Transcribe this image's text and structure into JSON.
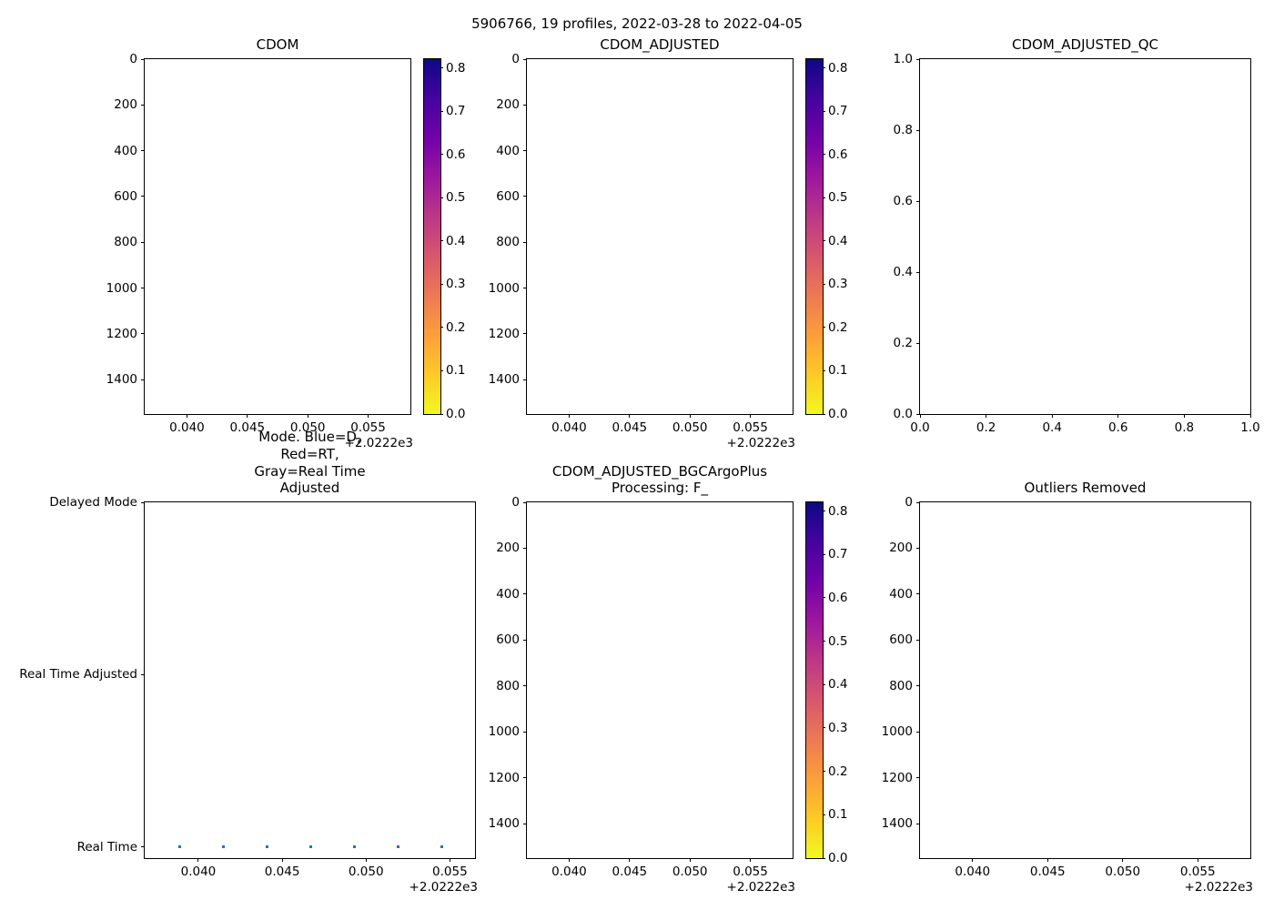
{
  "figure": {
    "title": "5906766, 19 profiles, 2022-03-28 to 2022-04-05",
    "background_color": "#ffffff",
    "axes_color": "#000000"
  },
  "chart_data": [
    {
      "id": "cdom",
      "type": "scatter",
      "title": "CDOM",
      "xlabel": "",
      "ylabel": "",
      "x_offset_text": "+2.0222e3",
      "xlim": [
        0.0365,
        0.0585
      ],
      "x_ticks": [
        0.04,
        0.045,
        0.05,
        0.055
      ],
      "x_tick_labels": [
        "0.040",
        "0.045",
        "0.050",
        "0.055"
      ],
      "ylim_top": 0,
      "ylim_bottom": 1550,
      "y_ticks": [
        0,
        200,
        400,
        600,
        800,
        1000,
        1200,
        1400
      ],
      "y_tick_labels": [
        "0",
        "200",
        "400",
        "600",
        "800",
        "1000",
        "1200",
        "1400"
      ],
      "points": [],
      "colorbar": {
        "vmin": 0.0,
        "vmax": 0.82,
        "ticks": [
          0.8,
          0.7,
          0.6,
          0.5,
          0.4,
          0.3,
          0.2,
          0.1,
          0.0
        ],
        "tick_labels": [
          "0.8",
          "0.7",
          "0.6",
          "0.5",
          "0.4",
          "0.3",
          "0.2",
          "0.1",
          "0.0"
        ],
        "colormap": "plasma_r",
        "gradient_top_to_bottom": [
          "#0d0887",
          "#46039f",
          "#7201a8",
          "#9c179e",
          "#bd3786",
          "#d8576b",
          "#ed7953",
          "#fb9f3a",
          "#fdca26",
          "#f0f921"
        ]
      }
    },
    {
      "id": "cdom-adjusted",
      "type": "scatter",
      "title": "CDOM_ADJUSTED",
      "xlabel": "",
      "ylabel": "",
      "x_offset_text": "+2.0222e3",
      "xlim": [
        0.0365,
        0.0585
      ],
      "x_ticks": [
        0.04,
        0.045,
        0.05,
        0.055
      ],
      "x_tick_labels": [
        "0.040",
        "0.045",
        "0.050",
        "0.055"
      ],
      "ylim_top": 0,
      "ylim_bottom": 1550,
      "y_ticks": [
        0,
        200,
        400,
        600,
        800,
        1000,
        1200,
        1400
      ],
      "y_tick_labels": [
        "0",
        "200",
        "400",
        "600",
        "800",
        "1000",
        "1200",
        "1400"
      ],
      "points": [],
      "colorbar": {
        "vmin": 0.0,
        "vmax": 0.82,
        "ticks": [
          0.8,
          0.7,
          0.6,
          0.5,
          0.4,
          0.3,
          0.2,
          0.1,
          0.0
        ],
        "tick_labels": [
          "0.8",
          "0.7",
          "0.6",
          "0.5",
          "0.4",
          "0.3",
          "0.2",
          "0.1",
          "0.0"
        ],
        "colormap": "plasma_r",
        "gradient_top_to_bottom": [
          "#0d0887",
          "#46039f",
          "#7201a8",
          "#9c179e",
          "#bd3786",
          "#d8576b",
          "#ed7953",
          "#fb9f3a",
          "#fdca26",
          "#f0f921"
        ]
      }
    },
    {
      "id": "cdom-adjusted-qc",
      "type": "scatter",
      "title": "CDOM_ADJUSTED_QC",
      "xlabel": "",
      "ylabel": "",
      "x_offset_text": "",
      "xlim": [
        0.0,
        1.0
      ],
      "x_ticks": [
        0.0,
        0.2,
        0.4,
        0.6,
        0.8,
        1.0
      ],
      "x_tick_labels": [
        "0.0",
        "0.2",
        "0.4",
        "0.6",
        "0.8",
        "1.0"
      ],
      "ylim_top": 1.0,
      "ylim_bottom": 0.0,
      "y_ticks": [
        1.0,
        0.8,
        0.6,
        0.4,
        0.2,
        0.0
      ],
      "y_tick_labels": [
        "1.0",
        "0.8",
        "0.6",
        "0.4",
        "0.2",
        "0.0"
      ],
      "points": [],
      "colorbar": null
    },
    {
      "id": "mode",
      "type": "scatter",
      "title": "Mode. Blue=D, Red=RT,\nGray=Real Time Adjusted",
      "xlabel": "",
      "ylabel": "",
      "x_offset_text": "+2.0222e3",
      "xlim": [
        0.0368,
        0.0565
      ],
      "x_ticks": [
        0.04,
        0.045,
        0.05,
        0.055
      ],
      "x_tick_labels": [
        "0.040",
        "0.045",
        "0.050",
        "0.055"
      ],
      "ylim_top": 2.0,
      "ylim_bottom": -0.064,
      "y_ticks": [
        2,
        1,
        0
      ],
      "y_tick_labels": [
        "Delayed Mode",
        "Real Time Adjusted",
        "Real Time"
      ],
      "point_color": "#1f77b4",
      "point_size": 3,
      "points": [
        {
          "x": 0.0389,
          "y": 0
        },
        {
          "x": 0.0415,
          "y": 0
        },
        {
          "x": 0.0441,
          "y": 0
        },
        {
          "x": 0.0467,
          "y": 0
        },
        {
          "x": 0.0493,
          "y": 0
        },
        {
          "x": 0.0519,
          "y": 0
        },
        {
          "x": 0.0545,
          "y": 0
        }
      ],
      "colorbar": null
    },
    {
      "id": "cdom-adjusted-bgcargoplus",
      "type": "scatter",
      "title": "CDOM_ADJUSTED_BGCArgoPlus\nProcessing: F_",
      "xlabel": "",
      "ylabel": "",
      "x_offset_text": "+2.0222e3",
      "xlim": [
        0.0365,
        0.0585
      ],
      "x_ticks": [
        0.04,
        0.045,
        0.05,
        0.055
      ],
      "x_tick_labels": [
        "0.040",
        "0.045",
        "0.050",
        "0.055"
      ],
      "ylim_top": 0,
      "ylim_bottom": 1550,
      "y_ticks": [
        0,
        200,
        400,
        600,
        800,
        1000,
        1200,
        1400
      ],
      "y_tick_labels": [
        "0",
        "200",
        "400",
        "600",
        "800",
        "1000",
        "1200",
        "1400"
      ],
      "points": [],
      "colorbar": {
        "vmin": 0.0,
        "vmax": 0.82,
        "ticks": [
          0.8,
          0.7,
          0.6,
          0.5,
          0.4,
          0.3,
          0.2,
          0.1,
          0.0
        ],
        "tick_labels": [
          "0.8",
          "0.7",
          "0.6",
          "0.5",
          "0.4",
          "0.3",
          "0.2",
          "0.1",
          "0.0"
        ],
        "colormap": "plasma_r",
        "gradient_top_to_bottom": [
          "#0d0887",
          "#46039f",
          "#7201a8",
          "#9c179e",
          "#bd3786",
          "#d8576b",
          "#ed7953",
          "#fb9f3a",
          "#fdca26",
          "#f0f921"
        ]
      }
    },
    {
      "id": "outliers-removed",
      "type": "scatter",
      "title": "Outliers Removed",
      "xlabel": "",
      "ylabel": "",
      "x_offset_text": "+2.0222e3",
      "xlim": [
        0.0365,
        0.0585
      ],
      "x_ticks": [
        0.04,
        0.045,
        0.05,
        0.055
      ],
      "x_tick_labels": [
        "0.040",
        "0.045",
        "0.050",
        "0.055"
      ],
      "ylim_top": 0,
      "ylim_bottom": 1550,
      "y_ticks": [
        0,
        200,
        400,
        600,
        800,
        1000,
        1200,
        1400
      ],
      "y_tick_labels": [
        "0",
        "200",
        "400",
        "600",
        "800",
        "1000",
        "1200",
        "1400"
      ],
      "points": [],
      "colorbar": null
    }
  ]
}
